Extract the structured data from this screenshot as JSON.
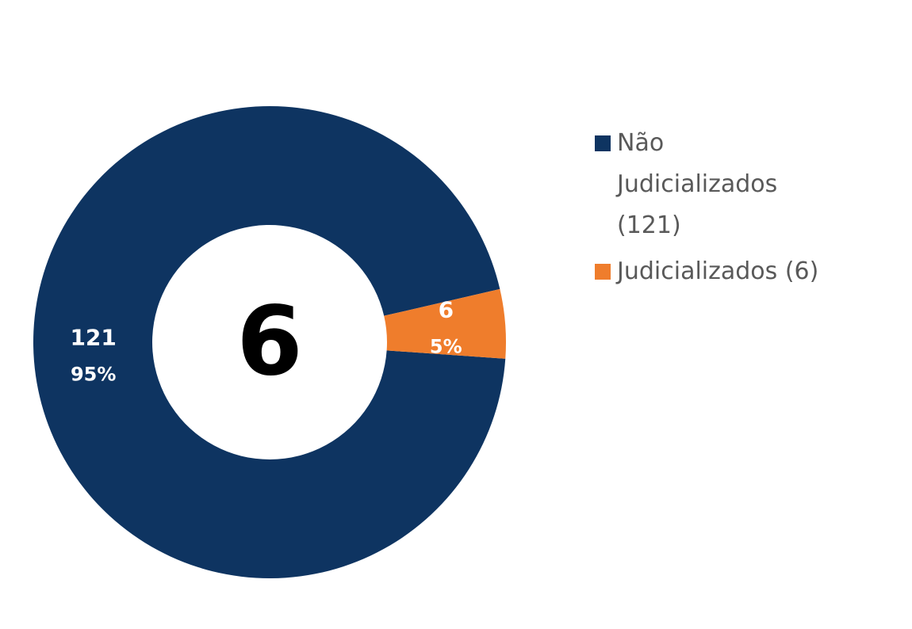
{
  "chart_data": {
    "type": "donut",
    "categories": [
      "Não Judicializados (121)",
      "Judicializados (6)"
    ],
    "values": [
      121,
      6
    ],
    "percent_labels": [
      "95%",
      "5%"
    ],
    "colors": [
      "#0e3461",
      "#ef7d2c"
    ],
    "center_text": "6",
    "legend": "right"
  }
}
